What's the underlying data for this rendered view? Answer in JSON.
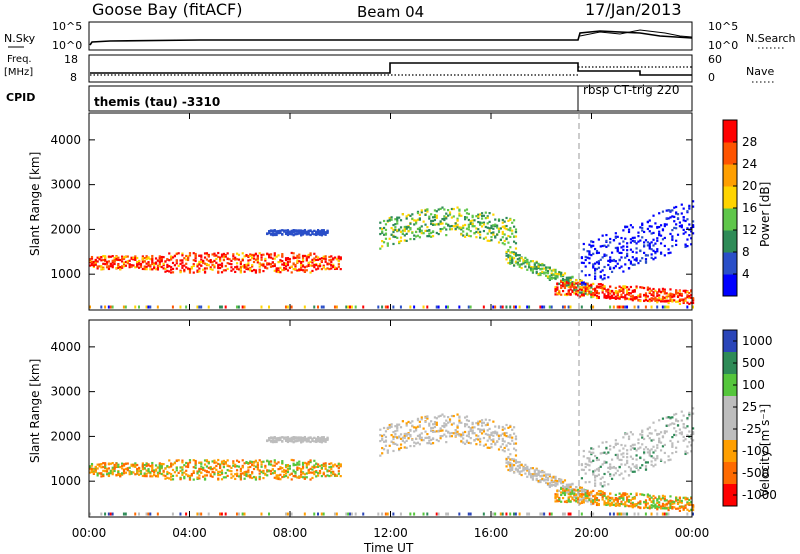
{
  "header": {
    "station": "Goose Bay (fitACF)",
    "beam": "Beam 04",
    "date": "17/Jan/2013"
  },
  "sky_panel": {
    "left_label": "N.Sky",
    "right_label": "N.Search",
    "left_ticks": [
      "10^5",
      "10^0"
    ],
    "right_ticks": [
      "10^5",
      "10^0"
    ]
  },
  "freq_panel": {
    "left_label_line1": "Freq.",
    "left_label_line2": "[MHz]",
    "right_label": "Nave",
    "left_ticks": [
      "18",
      "8"
    ],
    "right_ticks": [
      "60",
      "0"
    ]
  },
  "cpid_panel": {
    "label": "CPID",
    "segments": [
      "themis (tau) -3310",
      "rbsp CT-trig 220"
    ]
  },
  "colors": {
    "power": [
      "#0000ff",
      "#2a4fc8",
      "#2e8b57",
      "#5fc64a",
      "#ffd400",
      "#ff9f00",
      "#ff5400",
      "#ff0000"
    ],
    "velocity": [
      "#2a45b8",
      "#2e8b57",
      "#55c63c",
      "#bdbdbd",
      "#bdbdbd",
      "#ff9f00",
      "#ff6a00",
      "#ff0000"
    ]
  },
  "chart_data": [
    {
      "type": "heatmap",
      "title": "Power",
      "ylabel": "Slant Range [km]",
      "yticks": [
        "1000",
        "2000",
        "3000",
        "4000"
      ],
      "ylim": [
        200,
        4600
      ],
      "colorbar_label": "Power [dB]",
      "colorbar_ticks": [
        "4",
        "8",
        "12",
        "16",
        "20",
        "24",
        "28"
      ],
      "colorbar_range": [
        0,
        32
      ],
      "grid": false
    },
    {
      "type": "heatmap",
      "title": "Velocity",
      "xlabel": "Time UT",
      "xticks": [
        "00:00",
        "04:00",
        "08:00",
        "12:00",
        "16:00",
        "20:00",
        "00:00"
      ],
      "ylabel": "Slant Range [km]",
      "yticks": [
        "1000",
        "2000",
        "3000",
        "4000"
      ],
      "ylim": [
        200,
        4600
      ],
      "colorbar_label": "Velocity [m s⁻¹]",
      "colorbar_ticks": [
        "1000",
        "500",
        "100",
        "25",
        "-25",
        "-100",
        "-500",
        "-1000"
      ],
      "grid": false
    }
  ]
}
